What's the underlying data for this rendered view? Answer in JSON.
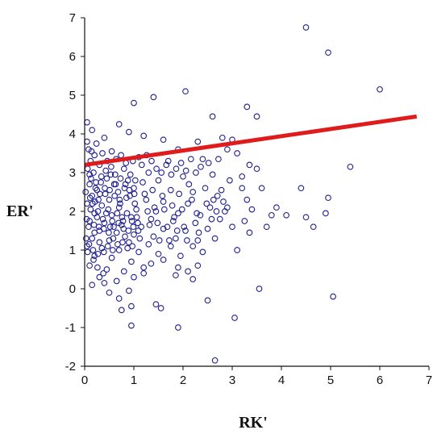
{
  "chart_data": {
    "type": "scatter",
    "title": "",
    "xlabel": "RK'",
    "ylabel": "ER'",
    "xlim": [
      0,
      7
    ],
    "ylim": [
      -2,
      7
    ],
    "xticks": [
      "0",
      "1",
      "2",
      "3",
      "4",
      "5",
      "6",
      "7"
    ],
    "yticks": [
      "-2",
      "-1",
      "0",
      "1",
      "2",
      "3",
      "4",
      "5",
      "6",
      "7"
    ],
    "grid": false,
    "legend": "none",
    "marker_color": "#1f1f8f",
    "fit_line_color": "#e01b1b",
    "fit_line": {
      "x": [
        0,
        6.75
      ],
      "y": [
        3.2,
        4.45
      ]
    },
    "points": [
      [
        4.5,
        6.75
      ],
      [
        4.95,
        6.1
      ],
      [
        6.0,
        5.15
      ],
      [
        2.05,
        5.1
      ],
      [
        1.4,
        4.95
      ],
      [
        1.0,
        4.8
      ],
      [
        3.3,
        4.7
      ],
      [
        3.5,
        4.45
      ],
      [
        2.6,
        4.45
      ],
      [
        0.05,
        4.3
      ],
      [
        0.7,
        4.25
      ],
      [
        0.15,
        4.1
      ],
      [
        0.9,
        4.05
      ],
      [
        1.2,
        3.95
      ],
      [
        0.4,
        3.9
      ],
      [
        1.6,
        3.85
      ],
      [
        2.3,
        3.8
      ],
      [
        2.8,
        3.9
      ],
      [
        3.0,
        3.85
      ],
      [
        3.1,
        3.5
      ],
      [
        1.9,
        3.6
      ],
      [
        0.55,
        3.55
      ],
      [
        0.2,
        3.45
      ],
      [
        1.1,
        3.4
      ],
      [
        1.7,
        3.3
      ],
      [
        2.4,
        3.35
      ],
      [
        3.35,
        3.2
      ],
      [
        3.5,
        3.1
      ],
      [
        5.4,
        3.15
      ],
      [
        0.3,
        3.2
      ],
      [
        0.8,
        3.1
      ],
      [
        1.3,
        3.0
      ],
      [
        2.0,
        2.9
      ],
      [
        2.6,
        2.95
      ],
      [
        2.95,
        2.8
      ],
      [
        0.1,
        2.95
      ],
      [
        0.45,
        2.85
      ],
      [
        1.5,
        2.8
      ],
      [
        4.4,
        2.6
      ],
      [
        3.2,
        2.6
      ],
      [
        0.6,
        2.7
      ],
      [
        1.0,
        2.6
      ],
      [
        1.75,
        2.55
      ],
      [
        2.2,
        2.5
      ],
      [
        2.7,
        2.4
      ],
      [
        0.25,
        2.55
      ],
      [
        0.15,
        2.4
      ],
      [
        0.5,
        2.3
      ],
      [
        0.85,
        2.35
      ],
      [
        1.25,
        2.3
      ],
      [
        1.6,
        2.25
      ],
      [
        2.1,
        2.2
      ],
      [
        2.55,
        2.1
      ],
      [
        3.3,
        2.3
      ],
      [
        3.9,
        2.1
      ],
      [
        4.95,
        2.35
      ],
      [
        0.05,
        2.2
      ],
      [
        0.35,
        2.15
      ],
      [
        0.7,
        2.1
      ],
      [
        1.05,
        2.05
      ],
      [
        1.45,
        2.0
      ],
      [
        1.9,
        1.95
      ],
      [
        2.35,
        1.9
      ],
      [
        2.85,
        2.0
      ],
      [
        3.4,
        2.05
      ],
      [
        0.2,
        1.95
      ],
      [
        0.55,
        1.9
      ],
      [
        0.95,
        1.85
      ],
      [
        1.35,
        1.8
      ],
      [
        1.8,
        1.75
      ],
      [
        2.25,
        1.7
      ],
      [
        2.75,
        1.8
      ],
      [
        3.25,
        1.75
      ],
      [
        3.8,
        1.9
      ],
      [
        4.5,
        1.85
      ],
      [
        4.9,
        1.95
      ],
      [
        0.1,
        1.75
      ],
      [
        0.4,
        1.7
      ],
      [
        0.75,
        1.65
      ],
      [
        1.15,
        1.6
      ],
      [
        1.6,
        1.55
      ],
      [
        2.05,
        1.5
      ],
      [
        2.5,
        1.55
      ],
      [
        3.0,
        1.6
      ],
      [
        3.35,
        1.45
      ],
      [
        4.65,
        1.6
      ],
      [
        0.3,
        1.5
      ],
      [
        0.65,
        1.45
      ],
      [
        1.0,
        1.4
      ],
      [
        1.4,
        1.35
      ],
      [
        1.85,
        1.3
      ],
      [
        2.3,
        1.25
      ],
      [
        2.65,
        1.3
      ],
      [
        0.15,
        1.3
      ],
      [
        0.5,
        1.25
      ],
      [
        0.9,
        1.2
      ],
      [
        1.3,
        1.15
      ],
      [
        1.75,
        1.1
      ],
      [
        2.2,
        1.1
      ],
      [
        3.1,
        1.0
      ],
      [
        0.05,
        1.1
      ],
      [
        0.35,
        1.05
      ],
      [
        0.7,
        1.0
      ],
      [
        1.1,
        0.95
      ],
      [
        1.5,
        0.9
      ],
      [
        1.95,
        0.85
      ],
      [
        2.4,
        0.95
      ],
      [
        0.2,
        0.85
      ],
      [
        0.55,
        0.8
      ],
      [
        0.95,
        0.7
      ],
      [
        1.35,
        0.65
      ],
      [
        1.9,
        0.55
      ],
      [
        0.1,
        0.6
      ],
      [
        0.45,
        0.5
      ],
      [
        0.8,
        0.45
      ],
      [
        1.2,
        0.4
      ],
      [
        1.85,
        0.35
      ],
      [
        2.2,
        0.25
      ],
      [
        0.3,
        0.3
      ],
      [
        0.65,
        0.2
      ],
      [
        0.15,
        0.1
      ],
      [
        0.4,
        0.15
      ],
      [
        3.55,
        0.0
      ],
      [
        0.9,
        -0.05
      ],
      [
        0.5,
        -0.1
      ],
      [
        2.5,
        -0.3
      ],
      [
        0.7,
        -0.25
      ],
      [
        5.05,
        -0.2
      ],
      [
        1.45,
        -0.4
      ],
      [
        1.55,
        -0.5
      ],
      [
        0.95,
        -0.45
      ],
      [
        0.75,
        -0.55
      ],
      [
        3.05,
        -0.75
      ],
      [
        0.95,
        -0.95
      ],
      [
        1.9,
        -1.0
      ],
      [
        2.65,
        -1.85
      ],
      [
        0.05,
        3.8
      ],
      [
        0.08,
        3.6
      ],
      [
        0.12,
        3.3
      ],
      [
        0.18,
        3.0
      ],
      [
        0.1,
        2.7
      ],
      [
        0.22,
        2.6
      ],
      [
        0.28,
        2.3
      ],
      [
        0.12,
        2.05
      ],
      [
        0.25,
        1.85
      ],
      [
        0.08,
        1.6
      ],
      [
        0.2,
        1.45
      ],
      [
        0.3,
        1.2
      ],
      [
        0.06,
        0.95
      ],
      [
        0.18,
        0.75
      ],
      [
        0.26,
        0.55
      ],
      [
        0.38,
        0.4
      ],
      [
        0.33,
        2.75
      ],
      [
        0.42,
        2.45
      ],
      [
        0.48,
        2.05
      ],
      [
        0.52,
        1.6
      ],
      [
        0.58,
        1.3
      ],
      [
        0.62,
        2.95
      ],
      [
        0.68,
        2.5
      ],
      [
        0.72,
        2.2
      ],
      [
        0.78,
        1.75
      ],
      [
        0.82,
        1.35
      ],
      [
        0.88,
        2.8
      ],
      [
        0.92,
        2.4
      ],
      [
        1.02,
        2.2
      ],
      [
        1.08,
        1.7
      ],
      [
        1.12,
        1.3
      ],
      [
        1.18,
        2.75
      ],
      [
        1.22,
        2.45
      ],
      [
        1.28,
        2.0
      ],
      [
        1.32,
        1.65
      ],
      [
        1.38,
        2.55
      ],
      [
        1.42,
        2.1
      ],
      [
        1.48,
        1.7
      ],
      [
        1.52,
        1.25
      ],
      [
        1.58,
        2.4
      ],
      [
        1.62,
        2.05
      ],
      [
        1.68,
        1.6
      ],
      [
        1.72,
        1.25
      ],
      [
        1.78,
        2.15
      ],
      [
        1.82,
        1.85
      ],
      [
        1.88,
        1.5
      ],
      [
        1.92,
        2.45
      ],
      [
        1.98,
        2.05
      ],
      [
        2.02,
        1.6
      ],
      [
        2.08,
        1.25
      ],
      [
        2.12,
        2.7
      ],
      [
        2.18,
        2.3
      ],
      [
        2.28,
        1.95
      ],
      [
        2.32,
        1.45
      ],
      [
        2.45,
        2.6
      ],
      [
        2.48,
        2.2
      ],
      [
        2.58,
        1.8
      ],
      [
        2.62,
        2.3
      ],
      [
        2.68,
        2.0
      ],
      [
        2.78,
        2.55
      ],
      [
        2.82,
        2.25
      ],
      [
        2.9,
        2.1
      ],
      [
        0.02,
        2.5
      ],
      [
        0.04,
        1.8
      ],
      [
        0.03,
        1.3
      ],
      [
        0.06,
        3.1
      ],
      [
        0.14,
        3.55
      ],
      [
        0.24,
        3.75
      ],
      [
        0.36,
        3.5
      ],
      [
        0.46,
        3.3
      ],
      [
        0.54,
        3.15
      ],
      [
        0.64,
        3.35
      ],
      [
        0.74,
        3.45
      ],
      [
        0.84,
        3.25
      ],
      [
        0.98,
        3.3
      ],
      [
        1.16,
        3.2
      ],
      [
        1.26,
        3.45
      ],
      [
        1.36,
        3.3
      ],
      [
        1.46,
        3.1
      ],
      [
        1.56,
        3.0
      ],
      [
        1.66,
        3.2
      ],
      [
        1.76,
        2.95
      ],
      [
        1.86,
        3.1
      ],
      [
        1.96,
        3.25
      ],
      [
        2.06,
        3.05
      ],
      [
        2.16,
        3.35
      ],
      [
        2.26,
        3.0
      ],
      [
        2.36,
        3.15
      ],
      [
        2.52,
        3.25
      ],
      [
        2.72,
        3.35
      ],
      [
        0.16,
        2.2
      ],
      [
        0.27,
        2.0
      ],
      [
        0.37,
        1.8
      ],
      [
        0.44,
        1.95
      ],
      [
        0.56,
        1.75
      ],
      [
        0.66,
        1.95
      ],
      [
        0.76,
        1.85
      ],
      [
        0.86,
        1.95
      ],
      [
        0.96,
        1.75
      ],
      [
        1.06,
        1.85
      ],
      [
        0.19,
        1.65
      ],
      [
        0.29,
        1.6
      ],
      [
        0.39,
        1.55
      ],
      [
        0.49,
        1.45
      ],
      [
        0.59,
        1.6
      ],
      [
        0.69,
        1.7
      ],
      [
        0.79,
        1.55
      ],
      [
        0.89,
        1.5
      ],
      [
        0.99,
        1.6
      ],
      [
        1.09,
        1.5
      ],
      [
        0.11,
        2.35
      ],
      [
        0.21,
        2.25
      ],
      [
        0.31,
        2.45
      ],
      [
        0.41,
        2.6
      ],
      [
        0.51,
        2.55
      ],
      [
        0.61,
        2.4
      ],
      [
        0.71,
        2.3
      ],
      [
        0.81,
        2.6
      ],
      [
        0.91,
        2.55
      ],
      [
        1.01,
        2.45
      ],
      [
        0.13,
        2.85
      ],
      [
        0.23,
        2.75
      ],
      [
        0.34,
        2.9
      ],
      [
        0.43,
        3.05
      ],
      [
        0.53,
        2.95
      ],
      [
        0.63,
        2.7
      ],
      [
        0.73,
        2.85
      ],
      [
        0.83,
        2.7
      ],
      [
        0.93,
        2.95
      ],
      [
        1.03,
        2.8
      ],
      [
        0.09,
        1.15
      ],
      [
        0.17,
        1.0
      ],
      [
        0.27,
        0.9
      ],
      [
        0.39,
        0.95
      ],
      [
        0.47,
        1.1
      ],
      [
        0.57,
        1.0
      ],
      [
        0.67,
        1.15
      ],
      [
        0.77,
        1.2
      ],
      [
        0.87,
        1.05
      ],
      [
        0.97,
        1.1
      ],
      [
        3.6,
        2.6
      ],
      [
        3.2,
        2.9
      ],
      [
        2.9,
        3.6
      ],
      [
        3.7,
        1.6
      ],
      [
        4.1,
        1.9
      ],
      [
        2.3,
        0.6
      ],
      [
        2.1,
        0.45
      ],
      [
        1.6,
        0.75
      ],
      [
        1.2,
        0.55
      ],
      [
        1.0,
        0.3
      ]
    ]
  }
}
